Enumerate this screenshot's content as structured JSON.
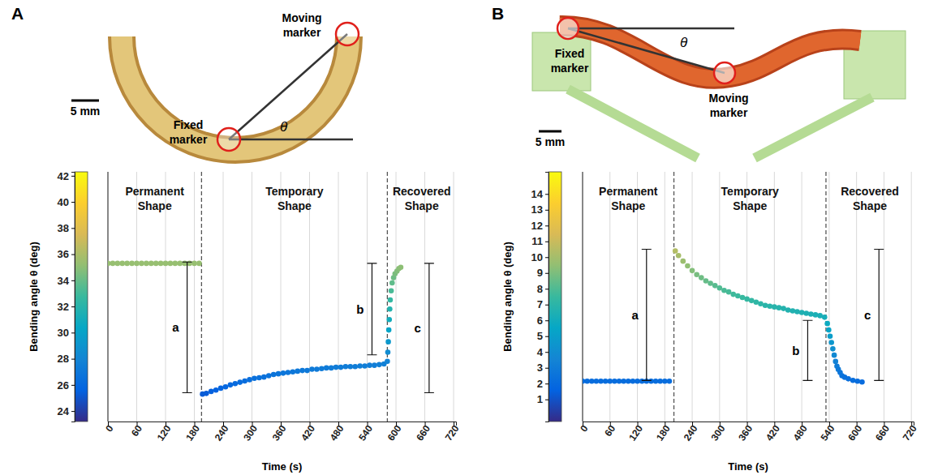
{
  "chart_data": [
    {
      "type": "scatter",
      "panel": "A",
      "photo": {
        "moving_label": "Moving marker",
        "fixed_label": "Fixed marker",
        "scale_label": "5 mm",
        "angle_label": "θ"
      },
      "x_label": "Time (s)",
      "y_label": "Bending angle θ (deg)",
      "xlim": [
        0,
        725
      ],
      "xticks": [
        0,
        60,
        120,
        180,
        240,
        300,
        360,
        420,
        480,
        540,
        600,
        660,
        720
      ],
      "ylim": [
        23.2,
        42.3
      ],
      "yticks": [
        24,
        26,
        28,
        30,
        32,
        34,
        36,
        38,
        40,
        42
      ],
      "grid": true,
      "phases": [
        "Permanent Shape",
        "Temporary Shape",
        "Recovered Shape"
      ],
      "dividers": [
        195,
        582
      ],
      "brackets": [
        {
          "label": "a",
          "x": 165,
          "from": 25.4,
          "to": 35.4
        },
        {
          "label": "b",
          "x": 550,
          "from": 28.3,
          "to": 35.3
        },
        {
          "label": "c",
          "x": 669,
          "from": 25.4,
          "to": 35.3
        }
      ],
      "series": [
        {
          "x": [
            0,
            10,
            20,
            30,
            40,
            50,
            60,
            70,
            80,
            90,
            100,
            110,
            120,
            130,
            140,
            150,
            160,
            170,
            180,
            190,
            197,
            205,
            215,
            225,
            235,
            245,
            255,
            265,
            275,
            285,
            295,
            305,
            315,
            325,
            335,
            345,
            355,
            365,
            375,
            385,
            395,
            405,
            415,
            425,
            435,
            445,
            455,
            465,
            475,
            485,
            495,
            505,
            515,
            525,
            535,
            545,
            555,
            565,
            575,
            582,
            583,
            584,
            585,
            586,
            587,
            588,
            590,
            592,
            595,
            598,
            602,
            606,
            610
          ],
          "values": [
            35.3,
            35.3,
            35.3,
            35.3,
            35.3,
            35.3,
            35.3,
            35.3,
            35.3,
            35.3,
            35.3,
            35.3,
            35.3,
            35.3,
            35.3,
            35.3,
            35.3,
            35.3,
            35.3,
            35.3,
            25.3,
            25.35,
            25.5,
            25.6,
            25.75,
            25.85,
            26.0,
            26.1,
            26.2,
            26.3,
            26.4,
            26.5,
            26.55,
            26.6,
            26.7,
            26.8,
            26.85,
            26.9,
            26.95,
            27.0,
            27.05,
            27.1,
            27.1,
            27.2,
            27.2,
            27.25,
            27.3,
            27.3,
            27.35,
            27.35,
            27.4,
            27.4,
            27.4,
            27.45,
            27.45,
            27.5,
            27.5,
            27.55,
            27.6,
            27.8,
            28.5,
            29.3,
            30.2,
            31.0,
            31.8,
            32.5,
            33.2,
            33.8,
            34.2,
            34.5,
            34.7,
            34.9,
            35.0
          ]
        }
      ]
    },
    {
      "type": "scatter",
      "panel": "B",
      "photo": {
        "moving_label": "Moving marker",
        "fixed_label": "Fixed marker",
        "scale_label": "5 mm",
        "angle_label": "θ"
      },
      "x_label": "Time (s)",
      "y_label": "Bending angle θ (deg)",
      "xlim": [
        0,
        725
      ],
      "xticks": [
        0,
        60,
        120,
        180,
        240,
        300,
        360,
        420,
        480,
        540,
        600,
        660,
        720
      ],
      "ylim": [
        -0.4,
        15.4
      ],
      "yticks": [
        1,
        2,
        3,
        4,
        5,
        6,
        7,
        8,
        9,
        10,
        11,
        12,
        13,
        14
      ],
      "grid": true,
      "phases": [
        "Permanent Shape",
        "Temporary Shape",
        "Recovered Shape"
      ],
      "dividers": [
        200,
        533
      ],
      "brackets": [
        {
          "label": "a",
          "x": 140,
          "from": 2.2,
          "to": 10.5
        },
        {
          "label": "b",
          "x": 493,
          "from": 2.2,
          "to": 6.0
        },
        {
          "label": "c",
          "x": 649,
          "from": 2.2,
          "to": 10.5
        }
      ],
      "series": [
        {
          "x": [
            0,
            10,
            20,
            30,
            40,
            50,
            60,
            70,
            80,
            90,
            100,
            110,
            120,
            130,
            140,
            150,
            160,
            170,
            180,
            190,
            203,
            210,
            220,
            230,
            240,
            250,
            260,
            270,
            280,
            290,
            300,
            310,
            320,
            330,
            340,
            350,
            360,
            370,
            380,
            390,
            400,
            410,
            420,
            430,
            440,
            450,
            460,
            470,
            480,
            490,
            500,
            510,
            520,
            530,
            536,
            539,
            542,
            545,
            548,
            551,
            554,
            557,
            560,
            564,
            568,
            574,
            582,
            592,
            602,
            612
          ],
          "values": [
            2.15,
            2.15,
            2.15,
            2.15,
            2.15,
            2.15,
            2.15,
            2.15,
            2.15,
            2.15,
            2.15,
            2.15,
            2.15,
            2.15,
            2.15,
            2.15,
            2.15,
            2.15,
            2.15,
            2.15,
            10.4,
            10.1,
            9.75,
            9.45,
            9.15,
            8.9,
            8.7,
            8.5,
            8.35,
            8.2,
            8.05,
            7.9,
            7.8,
            7.65,
            7.55,
            7.45,
            7.35,
            7.25,
            7.15,
            7.05,
            6.95,
            6.9,
            6.85,
            6.8,
            6.75,
            6.65,
            6.6,
            6.55,
            6.5,
            6.45,
            6.4,
            6.35,
            6.3,
            6.2,
            5.8,
            5.4,
            5.0,
            4.6,
            4.2,
            3.8,
            3.4,
            3.1,
            2.9,
            2.7,
            2.5,
            2.4,
            2.3,
            2.2,
            2.15,
            2.1
          ]
        }
      ]
    }
  ]
}
